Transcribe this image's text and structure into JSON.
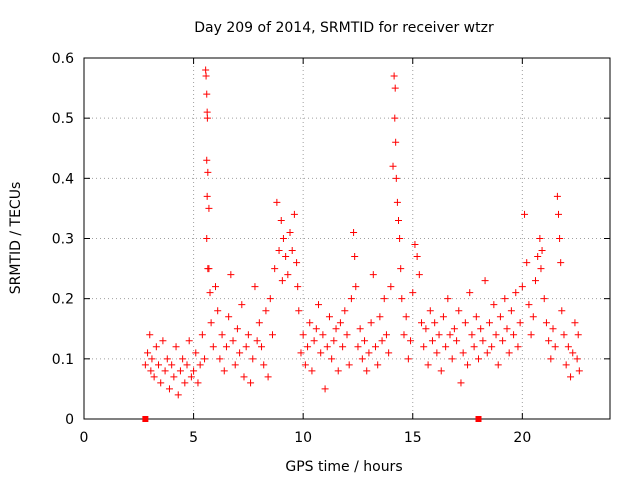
{
  "chart_data": {
    "type": "scatter",
    "title": "Day 209 of 2014, SRMTID for receiver wtzr",
    "xlabel": "GPS time / hours",
    "ylabel": "SRMTID / TECUs",
    "xlim": [
      0,
      24
    ],
    "ylim": [
      0,
      0.6
    ],
    "xticks": [
      0,
      5,
      10,
      15,
      20
    ],
    "yticks": [
      0,
      0.1,
      0.2,
      0.3,
      0.4,
      0.5,
      0.6
    ],
    "xtick_labels": [
      "0",
      "5",
      "10",
      "15",
      "20"
    ],
    "ytick_labels": [
      "0",
      "0.1",
      "0.2",
      "0.3",
      "0.4",
      "0.5",
      "0.6"
    ],
    "grid": true,
    "marker": "+",
    "color": "#ff0000",
    "series": [
      {
        "name": "SRMTID",
        "points": [
          [
            2.8,
            0.09
          ],
          [
            2.9,
            0.11
          ],
          [
            3.0,
            0.14
          ],
          [
            3.05,
            0.08
          ],
          [
            3.1,
            0.1
          ],
          [
            3.2,
            0.07
          ],
          [
            3.3,
            0.12
          ],
          [
            3.4,
            0.09
          ],
          [
            3.5,
            0.06
          ],
          [
            3.6,
            0.13
          ],
          [
            3.7,
            0.08
          ],
          [
            3.8,
            0.1
          ],
          [
            3.9,
            0.05
          ],
          [
            4.0,
            0.09
          ],
          [
            4.1,
            0.07
          ],
          [
            4.2,
            0.12
          ],
          [
            4.3,
            0.04
          ],
          [
            4.4,
            0.08
          ],
          [
            4.5,
            0.1
          ],
          [
            4.6,
            0.06
          ],
          [
            4.7,
            0.09
          ],
          [
            4.8,
            0.13
          ],
          [
            4.9,
            0.07
          ],
          [
            5.0,
            0.08
          ],
          [
            5.1,
            0.11
          ],
          [
            5.2,
            0.06
          ],
          [
            5.3,
            0.09
          ],
          [
            5.4,
            0.14
          ],
          [
            5.5,
            0.1
          ],
          [
            5.55,
            0.58
          ],
          [
            5.57,
            0.57
          ],
          [
            5.6,
            0.54
          ],
          [
            5.62,
            0.51
          ],
          [
            5.63,
            0.5
          ],
          [
            5.6,
            0.43
          ],
          [
            5.65,
            0.41
          ],
          [
            5.62,
            0.37
          ],
          [
            5.7,
            0.35
          ],
          [
            5.6,
            0.3
          ],
          [
            5.65,
            0.25
          ],
          [
            5.7,
            0.25
          ],
          [
            5.75,
            0.21
          ],
          [
            5.8,
            0.16
          ],
          [
            5.9,
            0.12
          ],
          [
            6.0,
            0.22
          ],
          [
            6.1,
            0.18
          ],
          [
            6.2,
            0.1
          ],
          [
            6.3,
            0.14
          ],
          [
            6.4,
            0.08
          ],
          [
            6.5,
            0.12
          ],
          [
            6.6,
            0.17
          ],
          [
            6.7,
            0.24
          ],
          [
            6.8,
            0.13
          ],
          [
            6.9,
            0.09
          ],
          [
            7.0,
            0.15
          ],
          [
            7.1,
            0.11
          ],
          [
            7.2,
            0.19
          ],
          [
            7.3,
            0.07
          ],
          [
            7.4,
            0.12
          ],
          [
            7.5,
            0.14
          ],
          [
            7.6,
            0.06
          ],
          [
            7.7,
            0.1
          ],
          [
            7.8,
            0.22
          ],
          [
            7.9,
            0.13
          ],
          [
            8.0,
            0.16
          ],
          [
            8.1,
            0.12
          ],
          [
            8.2,
            0.09
          ],
          [
            8.3,
            0.18
          ],
          [
            8.4,
            0.07
          ],
          [
            8.5,
            0.2
          ],
          [
            8.6,
            0.14
          ],
          [
            8.7,
            0.25
          ],
          [
            8.8,
            0.36
          ],
          [
            8.9,
            0.28
          ],
          [
            9.0,
            0.33
          ],
          [
            9.05,
            0.23
          ],
          [
            9.1,
            0.3
          ],
          [
            9.2,
            0.27
          ],
          [
            9.3,
            0.24
          ],
          [
            9.4,
            0.31
          ],
          [
            9.5,
            0.28
          ],
          [
            9.6,
            0.34
          ],
          [
            9.7,
            0.26
          ],
          [
            9.75,
            0.22
          ],
          [
            9.8,
            0.18
          ],
          [
            9.9,
            0.11
          ],
          [
            10.0,
            0.14
          ],
          [
            10.1,
            0.09
          ],
          [
            10.2,
            0.12
          ],
          [
            10.3,
            0.16
          ],
          [
            10.4,
            0.08
          ],
          [
            10.5,
            0.13
          ],
          [
            10.6,
            0.15
          ],
          [
            10.7,
            0.19
          ],
          [
            10.8,
            0.11
          ],
          [
            10.9,
            0.14
          ],
          [
            11.0,
            0.05
          ],
          [
            11.1,
            0.12
          ],
          [
            11.2,
            0.17
          ],
          [
            11.3,
            0.1
          ],
          [
            11.4,
            0.13
          ],
          [
            11.5,
            0.15
          ],
          [
            11.6,
            0.08
          ],
          [
            11.7,
            0.16
          ],
          [
            11.8,
            0.12
          ],
          [
            11.9,
            0.18
          ],
          [
            12.0,
            0.14
          ],
          [
            12.1,
            0.09
          ],
          [
            12.2,
            0.2
          ],
          [
            12.3,
            0.31
          ],
          [
            12.35,
            0.27
          ],
          [
            12.4,
            0.22
          ],
          [
            12.5,
            0.12
          ],
          [
            12.6,
            0.15
          ],
          [
            12.7,
            0.1
          ],
          [
            12.8,
            0.13
          ],
          [
            12.9,
            0.08
          ],
          [
            13.0,
            0.11
          ],
          [
            13.1,
            0.16
          ],
          [
            13.2,
            0.24
          ],
          [
            13.3,
            0.12
          ],
          [
            13.4,
            0.09
          ],
          [
            13.5,
            0.17
          ],
          [
            13.6,
            0.13
          ],
          [
            13.7,
            0.2
          ],
          [
            13.8,
            0.14
          ],
          [
            13.9,
            0.11
          ],
          [
            14.0,
            0.22
          ],
          [
            14.1,
            0.42
          ],
          [
            14.15,
            0.57
          ],
          [
            14.2,
            0.55
          ],
          [
            14.18,
            0.5
          ],
          [
            14.22,
            0.46
          ],
          [
            14.25,
            0.4
          ],
          [
            14.3,
            0.36
          ],
          [
            14.35,
            0.33
          ],
          [
            14.4,
            0.3
          ],
          [
            14.45,
            0.25
          ],
          [
            14.5,
            0.2
          ],
          [
            14.6,
            0.14
          ],
          [
            14.7,
            0.17
          ],
          [
            14.8,
            0.1
          ],
          [
            14.9,
            0.13
          ],
          [
            15.0,
            0.21
          ],
          [
            15.1,
            0.29
          ],
          [
            15.2,
            0.27
          ],
          [
            15.3,
            0.24
          ],
          [
            15.4,
            0.16
          ],
          [
            15.5,
            0.12
          ],
          [
            15.6,
            0.15
          ],
          [
            15.7,
            0.09
          ],
          [
            15.8,
            0.18
          ],
          [
            15.9,
            0.13
          ],
          [
            16.0,
            0.16
          ],
          [
            16.1,
            0.11
          ],
          [
            16.2,
            0.14
          ],
          [
            16.3,
            0.08
          ],
          [
            16.4,
            0.17
          ],
          [
            16.5,
            0.12
          ],
          [
            16.6,
            0.2
          ],
          [
            16.7,
            0.14
          ],
          [
            16.8,
            0.1
          ],
          [
            16.9,
            0.15
          ],
          [
            17.0,
            0.13
          ],
          [
            17.1,
            0.18
          ],
          [
            17.2,
            0.06
          ],
          [
            17.3,
            0.11
          ],
          [
            17.4,
            0.16
          ],
          [
            17.5,
            0.09
          ],
          [
            17.6,
            0.21
          ],
          [
            17.7,
            0.14
          ],
          [
            17.8,
            0.12
          ],
          [
            17.9,
            0.17
          ],
          [
            18.0,
            0.1
          ],
          [
            18.1,
            0.15
          ],
          [
            18.2,
            0.13
          ],
          [
            18.3,
            0.23
          ],
          [
            18.4,
            0.11
          ],
          [
            18.5,
            0.16
          ],
          [
            18.6,
            0.12
          ],
          [
            18.7,
            0.19
          ],
          [
            18.8,
            0.14
          ],
          [
            18.9,
            0.09
          ],
          [
            19.0,
            0.17
          ],
          [
            19.1,
            0.13
          ],
          [
            19.2,
            0.2
          ],
          [
            19.3,
            0.15
          ],
          [
            19.4,
            0.11
          ],
          [
            19.5,
            0.18
          ],
          [
            19.6,
            0.14
          ],
          [
            19.7,
            0.21
          ],
          [
            19.8,
            0.12
          ],
          [
            19.9,
            0.16
          ],
          [
            20.0,
            0.22
          ],
          [
            20.1,
            0.34
          ],
          [
            20.2,
            0.26
          ],
          [
            20.3,
            0.19
          ],
          [
            20.4,
            0.14
          ],
          [
            20.5,
            0.17
          ],
          [
            20.6,
            0.23
          ],
          [
            20.7,
            0.27
          ],
          [
            20.8,
            0.3
          ],
          [
            20.85,
            0.25
          ],
          [
            20.9,
            0.28
          ],
          [
            21.0,
            0.2
          ],
          [
            21.1,
            0.16
          ],
          [
            21.2,
            0.13
          ],
          [
            21.3,
            0.1
          ],
          [
            21.4,
            0.15
          ],
          [
            21.5,
            0.12
          ],
          [
            21.6,
            0.37
          ],
          [
            21.65,
            0.34
          ],
          [
            21.7,
            0.3
          ],
          [
            21.75,
            0.26
          ],
          [
            21.8,
            0.18
          ],
          [
            21.9,
            0.14
          ],
          [
            22.0,
            0.09
          ],
          [
            22.1,
            0.12
          ],
          [
            22.2,
            0.07
          ],
          [
            22.3,
            0.11
          ],
          [
            22.4,
            0.16
          ],
          [
            22.5,
            0.1
          ],
          [
            22.55,
            0.14
          ],
          [
            22.6,
            0.08
          ]
        ]
      }
    ],
    "axis_markers_x": [
      2.8,
      18.0
    ]
  }
}
